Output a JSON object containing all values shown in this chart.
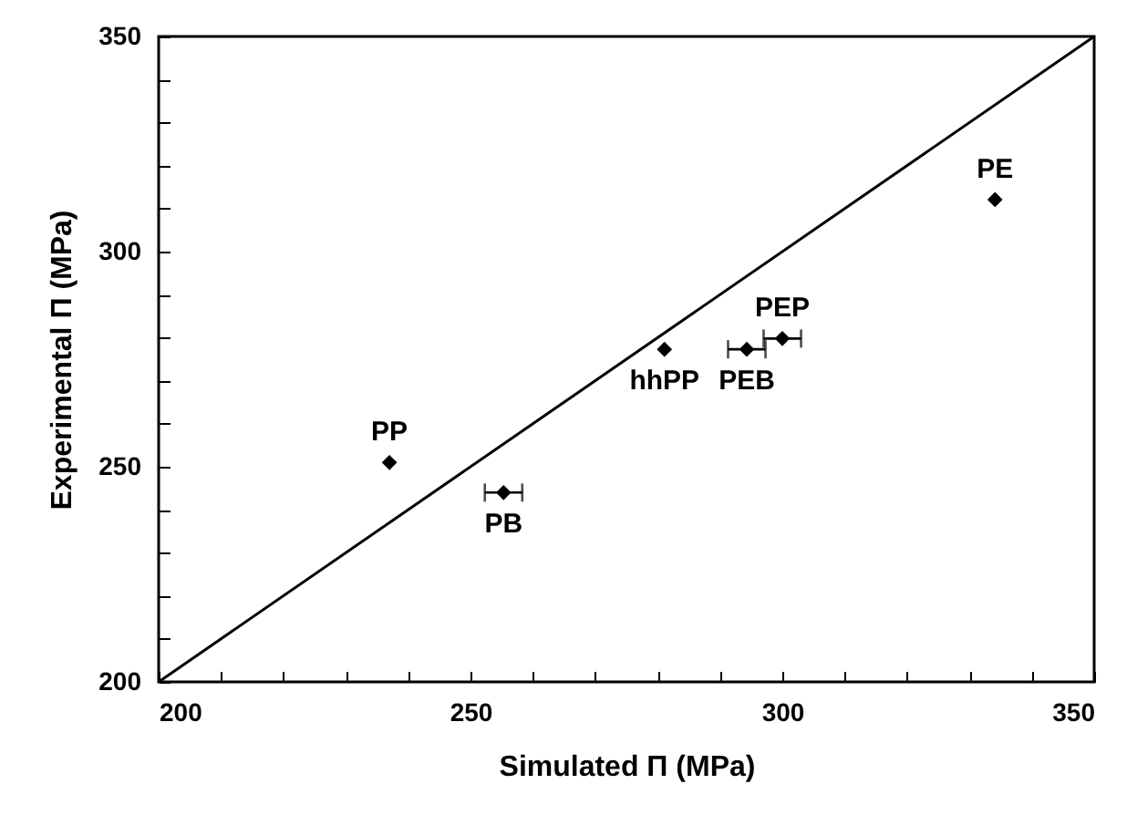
{
  "chart_data": {
    "type": "scatter",
    "xlabel": "Simulated Π (MPa)",
    "ylabel": "Experimental Π (MPa)",
    "xlim": [
      200,
      350
    ],
    "ylim": [
      200,
      350
    ],
    "xticks": [
      200,
      {
        "value": 210,
        "label": null
      },
      {
        "value": 220,
        "label": null
      },
      {
        "value": 230,
        "label": null
      },
      {
        "value": 240,
        "label": null
      },
      250,
      {
        "value": 260,
        "label": null
      },
      {
        "value": 270,
        "label": null
      },
      {
        "value": 280,
        "label": null
      },
      {
        "value": 290,
        "label": null
      },
      300,
      {
        "value": 310,
        "label": null
      },
      {
        "value": 320,
        "label": null
      },
      {
        "value": 330,
        "label": null
      },
      {
        "value": 340,
        "label": null
      },
      350
    ],
    "yticks": [
      200,
      {
        "value": 210,
        "label": null
      },
      {
        "value": 220,
        "label": null
      },
      {
        "value": 230,
        "label": null
      },
      {
        "value": 240,
        "label": null
      },
      250,
      {
        "value": 260,
        "label": null
      },
      {
        "value": 270,
        "label": null
      },
      {
        "value": 280,
        "label": null
      },
      {
        "value": 290,
        "label": null
      },
      300,
      {
        "value": 310,
        "label": null
      },
      {
        "value": 320,
        "label": null
      },
      {
        "value": 330,
        "label": null
      },
      {
        "value": 340,
        "label": null
      },
      350
    ],
    "series": [
      {
        "type": "line",
        "color": "#000000",
        "marker": "none",
        "x": [
          200,
          350
        ],
        "values": [
          200,
          350
        ]
      },
      {
        "type": "scatter",
        "color": "#000000",
        "x": [
          237,
          255.3,
          281.1,
          294.3,
          300,
          334.1
        ],
        "values": [
          251,
          244,
          277.3,
          277.3,
          279.8,
          312.1
        ],
        "xerrors": [
          null,
          3,
          null,
          3,
          3,
          null
        ]
      }
    ],
    "annotations": [
      {
        "text": "PP",
        "x": 237,
        "y": 251
      },
      {
        "text": "PB",
        "x": 255.3,
        "y": 244
      },
      {
        "text": "hhPP",
        "x": 281.1,
        "y": 277.3
      },
      {
        "text": "PEB",
        "x": 294.3,
        "y": 277.3
      },
      {
        "text": "PEP",
        "x": 300,
        "y": 279.8
      },
      {
        "text": "PE",
        "x": 334.1,
        "y": 312.1
      }
    ],
    "marker": "diamond",
    "line_style": "solid",
    "grid": false
  }
}
